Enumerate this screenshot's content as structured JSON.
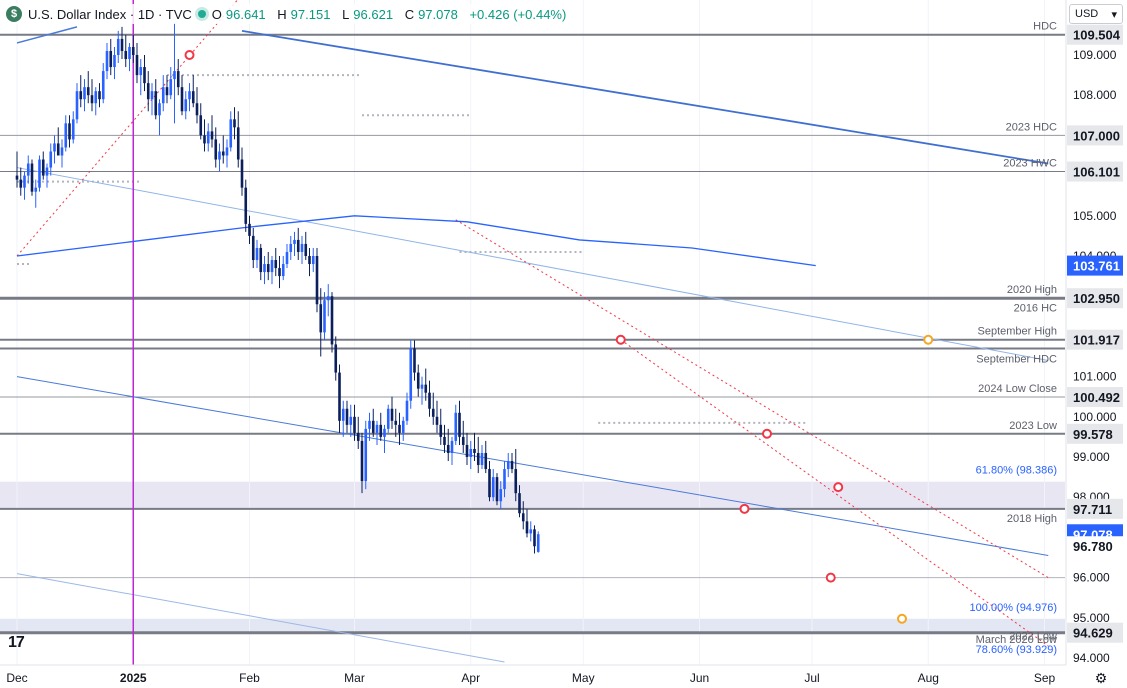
{
  "header": {
    "title": "U.S. Dollar Index · 1D · TVC",
    "symbol_letter": "$",
    "open_label": "O",
    "open": "96.641",
    "high_label": "H",
    "high": "97.151",
    "low_label": "L",
    "low": "96.621",
    "close_label": "C",
    "close": "97.078",
    "change": "+0.426 (+0.44%)"
  },
  "currency_select": {
    "value": "USD",
    "icon": "chevron-down-icon"
  },
  "logo_text": "17",
  "chart_data": {
    "type": "candlestick",
    "ylim": [
      93.75,
      110.0
    ],
    "y_ticks": [
      "109.000",
      "108.000",
      "105.000",
      "104.000",
      "101.000",
      "100.000",
      "99.000",
      "98.000",
      "96.000",
      "95.000",
      "94.000"
    ],
    "x_ticks": [
      "Dec",
      "2025",
      "Feb",
      "Mar",
      "Apr",
      "May",
      "Jun",
      "Jul",
      "Aug",
      "Sep"
    ],
    "x_tick_days": [
      0,
      31,
      62,
      90,
      121,
      151,
      182,
      212,
      243,
      274
    ],
    "x_start_date": "2024-12-01",
    "price_badges": [
      {
        "value": "109.504",
        "style": "level"
      },
      {
        "value": "107.000",
        "style": "level"
      },
      {
        "value": "106.101",
        "style": "level"
      },
      {
        "value": "103.761",
        "style": "ma",
        "color": "#2962ff"
      },
      {
        "value": "102.950",
        "style": "level"
      },
      {
        "value": "101.917",
        "style": "level"
      },
      {
        "value": "100.492",
        "style": "level"
      },
      {
        "value": "99.578",
        "style": "level"
      },
      {
        "value": "97.711",
        "style": "level"
      },
      {
        "value": "97.078",
        "style": "last",
        "color": "#2962ff"
      },
      {
        "value": "96.780",
        "style": "plain"
      },
      {
        "value": "94.629",
        "style": "level"
      }
    ],
    "horizontal_levels": [
      {
        "price": 109.504,
        "label": "HDC",
        "color": "#787b86",
        "width": 2
      },
      {
        "price": 107.0,
        "label": "2023 HDC",
        "color": "#9598a1",
        "width": 1
      },
      {
        "price": 106.101,
        "label": "2023 HWC",
        "color": "#787b86",
        "width": 1
      },
      {
        "price": 102.95,
        "label": "2020 High",
        "color": "#787b86",
        "width": 3
      },
      {
        "price": 102.5,
        "label": "2016 HC",
        "color": null,
        "width": 0
      },
      {
        "price": 101.917,
        "label": "September High",
        "color": "#787b86",
        "width": 2
      },
      {
        "price": 101.7,
        "label": "September HDC",
        "color": "#787b86",
        "width": 2
      },
      {
        "price": 100.492,
        "label": "2024 Low Close",
        "color": "#9598a1",
        "width": 1
      },
      {
        "price": 99.578,
        "label": "2023 Low",
        "color": "#787b86",
        "width": 2
      },
      {
        "price": 97.711,
        "label": "2018 High",
        "color": "#787b86",
        "width": 2
      },
      {
        "price": 96.0,
        "label": "",
        "color": "#b2b5be",
        "width": 1
      },
      {
        "price": 94.629,
        "label": "2022 Low",
        "color": "#787b86",
        "width": 3
      }
    ],
    "zones": [
      {
        "from": 97.711,
        "to": 98.386,
        "color": "#e9e6f3"
      },
      {
        "from": 94.629,
        "to": 94.976,
        "color": "#e3e7f3"
      }
    ],
    "fib_labels": [
      {
        "price": 98.386,
        "label": "61.80% (98.386)",
        "color": "#2962ff"
      },
      {
        "price": 94.976,
        "label": "100.00% (94.976)",
        "color": "#2962ff"
      },
      {
        "price": 93.929,
        "label": "78.60% (93.929)",
        "color": "#2962ff"
      }
    ],
    "extra_labels": [
      {
        "price": 94.45,
        "label": "March 2020 Low"
      }
    ],
    "annotations": [
      {
        "day": 46,
        "price": 109.0,
        "color": "#f23645"
      },
      {
        "day": 161,
        "price": 101.917,
        "color": "#f23645"
      },
      {
        "day": 200,
        "price": 99.578,
        "color": "#f23645"
      },
      {
        "day": 194,
        "price": 97.711,
        "color": "#f23645"
      },
      {
        "day": 219,
        "price": 98.25,
        "color": "#f23645"
      },
      {
        "day": 217,
        "price": 96.0,
        "color": "#f23645"
      },
      {
        "day": 243,
        "price": 101.917,
        "color": "#f5a623"
      },
      {
        "day": 236,
        "price": 94.976,
        "color": "#f5a623"
      }
    ],
    "moving_average": {
      "color": "#2962ff",
      "points": [
        [
          0,
          104.0
        ],
        [
          30,
          104.35
        ],
        [
          60,
          104.7
        ],
        [
          90,
          105.0
        ],
        [
          120,
          104.85
        ],
        [
          150,
          104.4
        ],
        [
          180,
          104.2
        ],
        [
          213,
          103.761
        ]
      ]
    },
    "trendlines": [
      {
        "from": [
          0,
          109.3
        ],
        "to": [
          16,
          109.7
        ],
        "color": "#4a7ad8",
        "width": 1.5
      },
      {
        "from": [
          60,
          109.6
        ],
        "to": [
          275,
          106.3
        ],
        "color": "#3f6fd1",
        "width": 1.8
      },
      {
        "from": [
          0,
          106.2
        ],
        "to": [
          275,
          101.4
        ],
        "color": "#90b4e8",
        "width": 1
      },
      {
        "from": [
          0,
          101.0
        ],
        "to": [
          275,
          96.55
        ],
        "color": "#4a7ad8",
        "width": 1
      },
      {
        "from": [
          0,
          96.1
        ],
        "to": [
          130,
          93.9
        ],
        "color": "#9bb8e6",
        "width": 1
      },
      {
        "from": [
          0,
          104.0
        ],
        "to": [
          60,
          110.5
        ],
        "color": "#f23645",
        "width": 1,
        "dash": true
      },
      {
        "from": [
          117,
          104.9
        ],
        "to": [
          275,
          96.0
        ],
        "color": "#f23645",
        "width": 1,
        "dash": true
      },
      {
        "from": [
          161,
          101.917
        ],
        "to": [
          275,
          94.3
        ],
        "color": "#f23645",
        "width": 1,
        "dash": true
      }
    ],
    "dotted_refs": [
      {
        "from": 0,
        "to": 33,
        "price": 105.85
      },
      {
        "from": 40,
        "to": 92,
        "price": 108.5
      },
      {
        "from": 92,
        "to": 121,
        "price": 107.5
      },
      {
        "from": 118,
        "to": 151,
        "price": 104.1
      },
      {
        "from": 155,
        "to": 211,
        "price": 99.85
      },
      {
        "from": 0,
        "to": 4,
        "price": 103.8
      }
    ],
    "candles": [
      [
        0,
        106.0,
        106.6,
        105.7,
        105.9
      ],
      [
        1,
        105.9,
        106.2,
        105.5,
        105.7
      ],
      [
        2,
        105.7,
        106.1,
        105.4,
        106.0
      ],
      [
        3,
        106.0,
        106.5,
        105.8,
        106.3
      ],
      [
        4,
        106.3,
        106.4,
        105.5,
        105.6
      ],
      [
        5,
        105.6,
        105.9,
        105.2,
        105.7
      ],
      [
        6,
        105.7,
        106.5,
        105.6,
        106.4
      ],
      [
        7,
        106.4,
        106.6,
        105.9,
        106.0
      ],
      [
        8,
        106.0,
        106.3,
        105.7,
        106.2
      ],
      [
        9,
        106.2,
        106.8,
        106.0,
        106.6
      ],
      [
        10,
        106.6,
        107.0,
        106.3,
        106.8
      ],
      [
        11,
        106.8,
        107.2,
        106.5,
        106.5
      ],
      [
        12,
        106.5,
        106.9,
        106.2,
        106.7
      ],
      [
        13,
        106.7,
        107.5,
        106.6,
        107.3
      ],
      [
        14,
        107.3,
        107.5,
        106.7,
        106.9
      ],
      [
        15,
        106.9,
        107.6,
        106.8,
        107.4
      ],
      [
        16,
        107.4,
        108.3,
        107.3,
        108.1
      ],
      [
        17,
        108.1,
        108.5,
        107.7,
        107.9
      ],
      [
        18,
        107.9,
        108.4,
        107.6,
        108.2
      ],
      [
        19,
        108.2,
        108.6,
        107.8,
        108.0
      ],
      [
        20,
        108.0,
        108.4,
        107.6,
        107.8
      ],
      [
        21,
        107.8,
        108.2,
        107.5,
        108.1
      ],
      [
        22,
        108.1,
        108.3,
        107.7,
        107.9
      ],
      [
        23,
        107.9,
        108.8,
        107.8,
        108.6
      ],
      [
        24,
        108.6,
        109.3,
        108.4,
        109.1
      ],
      [
        25,
        109.1,
        109.4,
        108.5,
        108.7
      ],
      [
        26,
        108.7,
        109.2,
        108.4,
        109.0
      ],
      [
        27,
        109.0,
        109.6,
        108.8,
        109.4
      ],
      [
        28,
        109.4,
        109.7,
        108.9,
        109.1
      ],
      [
        29,
        109.1,
        109.5,
        108.7,
        108.9
      ],
      [
        30,
        108.9,
        109.3,
        108.6,
        109.2
      ],
      [
        31,
        109.2,
        109.5,
        108.8,
        109.0
      ],
      [
        32,
        109.0,
        109.3,
        108.3,
        108.5
      ],
      [
        33,
        108.5,
        108.9,
        108.0,
        108.7
      ],
      [
        34,
        108.7,
        109.0,
        108.1,
        108.3
      ],
      [
        35,
        108.3,
        108.6,
        107.6,
        107.9
      ],
      [
        36,
        107.9,
        108.3,
        107.5,
        108.1
      ],
      [
        37,
        108.1,
        108.4,
        107.4,
        107.5
      ],
      [
        38,
        107.5,
        107.9,
        107.0,
        107.8
      ],
      [
        39,
        107.8,
        108.5,
        107.6,
        108.2
      ],
      [
        40,
        108.2,
        108.5,
        107.8,
        108.0
      ],
      [
        41,
        108.0,
        108.7,
        107.9,
        108.4
      ],
      [
        42,
        108.4,
        109.8,
        107.3,
        108.6
      ],
      [
        43,
        108.6,
        108.9,
        108.0,
        108.2
      ],
      [
        44,
        108.2,
        108.5,
        107.5,
        107.6
      ],
      [
        45,
        107.6,
        108.1,
        107.4,
        107.9
      ],
      [
        46,
        107.9,
        108.3,
        107.6,
        108.1
      ],
      [
        47,
        108.1,
        108.5,
        107.7,
        107.8
      ],
      [
        48,
        107.8,
        108.2,
        107.3,
        107.5
      ],
      [
        49,
        107.5,
        107.8,
        106.9,
        107.0
      ],
      [
        50,
        107.0,
        107.4,
        106.6,
        106.8
      ],
      [
        51,
        106.8,
        107.3,
        106.6,
        107.1
      ],
      [
        52,
        107.1,
        107.5,
        106.7,
        106.9
      ],
      [
        53,
        106.9,
        107.2,
        106.2,
        106.4
      ],
      [
        54,
        106.4,
        106.8,
        106.1,
        106.6
      ],
      [
        55,
        106.6,
        107.0,
        106.3,
        106.5
      ],
      [
        56,
        106.5,
        106.9,
        106.2,
        106.7
      ],
      [
        57,
        106.7,
        107.6,
        106.6,
        107.4
      ],
      [
        58,
        107.4,
        107.7,
        106.9,
        107.2
      ],
      [
        59,
        107.2,
        107.6,
        106.2,
        106.4
      ],
      [
        60,
        106.4,
        106.7,
        105.5,
        105.7
      ],
      [
        61,
        105.7,
        105.9,
        104.6,
        104.8
      ],
      [
        62,
        104.8,
        105.0,
        104.3,
        104.5
      ],
      [
        63,
        104.5,
        104.7,
        103.7,
        103.9
      ],
      [
        64,
        103.9,
        104.4,
        103.7,
        104.2
      ],
      [
        65,
        104.2,
        104.3,
        103.4,
        103.6
      ],
      [
        66,
        103.6,
        104.0,
        103.3,
        103.8
      ],
      [
        67,
        103.8,
        104.1,
        103.4,
        103.6
      ],
      [
        68,
        103.6,
        104.0,
        103.3,
        103.9
      ],
      [
        69,
        103.9,
        104.2,
        103.5,
        103.7
      ],
      [
        70,
        103.7,
        104.0,
        103.2,
        103.5
      ],
      [
        71,
        103.5,
        104.0,
        103.4,
        103.8
      ],
      [
        72,
        103.8,
        104.3,
        103.7,
        104.1
      ],
      [
        73,
        104.1,
        104.5,
        103.9,
        104.3
      ],
      [
        74,
        104.3,
        104.6,
        104.0,
        104.4
      ],
      [
        75,
        104.4,
        104.7,
        103.9,
        104.1
      ],
      [
        76,
        104.1,
        104.5,
        103.8,
        104.3
      ],
      [
        77,
        104.3,
        104.6,
        103.9,
        104.0
      ],
      [
        78,
        104.0,
        104.2,
        103.5,
        103.8
      ],
      [
        79,
        103.8,
        104.2,
        103.6,
        104.0
      ],
      [
        80,
        104.0,
        104.2,
        102.6,
        102.8
      ],
      [
        81,
        102.8,
        103.2,
        101.5,
        102.1
      ],
      [
        82,
        102.1,
        103.1,
        101.9,
        102.9
      ],
      [
        83,
        102.9,
        103.3,
        102.5,
        103.0
      ],
      [
        84,
        103.0,
        103.1,
        101.6,
        101.8
      ],
      [
        85,
        101.8,
        102.0,
        100.9,
        101.1
      ],
      [
        86,
        101.1,
        101.3,
        99.6,
        99.9
      ],
      [
        87,
        99.9,
        100.4,
        99.5,
        100.2
      ],
      [
        88,
        100.2,
        100.4,
        99.6,
        99.8
      ],
      [
        89,
        99.8,
        100.3,
        99.5,
        100.0
      ],
      [
        90,
        100.0,
        100.3,
        99.4,
        99.6
      ],
      [
        91,
        99.6,
        100.0,
        99.2,
        99.4
      ],
      [
        92,
        99.4,
        99.6,
        98.1,
        98.4
      ],
      [
        93,
        98.4,
        99.9,
        98.2,
        99.7
      ],
      [
        94,
        99.7,
        100.1,
        99.4,
        99.9
      ],
      [
        95,
        99.9,
        100.2,
        99.5,
        99.6
      ],
      [
        96,
        99.6,
        99.9,
        99.3,
        99.8
      ],
      [
        97,
        99.8,
        100.1,
        99.4,
        99.5
      ],
      [
        98,
        99.5,
        99.8,
        99.1,
        99.7
      ],
      [
        99,
        99.7,
        100.3,
        99.6,
        100.2
      ],
      [
        100,
        100.2,
        100.5,
        99.7,
        99.9
      ],
      [
        101,
        99.9,
        100.2,
        99.5,
        99.8
      ],
      [
        102,
        99.8,
        100.1,
        99.3,
        99.6
      ],
      [
        103,
        99.6,
        100.0,
        99.4,
        99.9
      ],
      [
        104,
        99.9,
        100.6,
        99.8,
        100.4
      ],
      [
        105,
        100.4,
        101.9,
        100.2,
        101.7
      ],
      [
        106,
        101.7,
        101.9,
        100.9,
        101.1
      ],
      [
        107,
        101.1,
        101.3,
        100.5,
        100.7
      ],
      [
        108,
        100.7,
        101.0,
        100.3,
        100.8
      ],
      [
        109,
        100.8,
        101.2,
        100.4,
        100.6
      ],
      [
        110,
        100.6,
        100.9,
        100.0,
        100.2
      ],
      [
        111,
        100.2,
        100.6,
        99.8,
        100.0
      ],
      [
        112,
        100.0,
        100.4,
        99.6,
        99.8
      ],
      [
        113,
        99.8,
        100.2,
        99.3,
        99.5
      ],
      [
        114,
        99.5,
        99.8,
        99.1,
        99.3
      ],
      [
        115,
        99.3,
        99.7,
        98.9,
        99.1
      ],
      [
        116,
        99.1,
        99.5,
        98.8,
        99.4
      ],
      [
        117,
        99.4,
        100.3,
        99.3,
        100.1
      ],
      [
        118,
        100.1,
        100.4,
        99.3,
        99.5
      ],
      [
        119,
        99.5,
        99.9,
        99.1,
        99.3
      ],
      [
        120,
        99.3,
        99.6,
        98.8,
        99.0
      ],
      [
        121,
        99.0,
        99.4,
        98.7,
        99.2
      ],
      [
        122,
        99.2,
        99.6,
        98.9,
        99.1
      ],
      [
        123,
        99.1,
        99.5,
        98.6,
        98.8
      ],
      [
        124,
        98.8,
        99.3,
        98.7,
        99.1
      ],
      [
        125,
        99.1,
        99.4,
        98.6,
        98.7
      ],
      [
        126,
        98.7,
        98.9,
        97.9,
        98.0
      ],
      [
        127,
        98.0,
        98.7,
        97.9,
        98.5
      ],
      [
        128,
        98.5,
        98.6,
        97.8,
        97.9
      ],
      [
        129,
        97.9,
        98.4,
        97.7,
        98.2
      ],
      [
        130,
        98.2,
        98.9,
        98.0,
        98.7
      ],
      [
        131,
        98.7,
        99.1,
        98.5,
        98.9
      ],
      [
        132,
        98.9,
        99.1,
        98.6,
        98.7
      ],
      [
        133,
        98.7,
        99.2,
        97.9,
        98.1
      ],
      [
        134,
        98.1,
        98.3,
        97.5,
        97.6
      ],
      [
        135,
        97.6,
        97.9,
        97.2,
        97.4
      ],
      [
        136,
        97.4,
        97.7,
        97.0,
        97.1
      ],
      [
        137,
        97.1,
        97.4,
        96.9,
        97.2
      ],
      [
        138,
        97.2,
        97.3,
        96.6,
        96.78
      ],
      [
        139,
        96.64,
        97.15,
        96.62,
        97.08
      ]
    ]
  }
}
